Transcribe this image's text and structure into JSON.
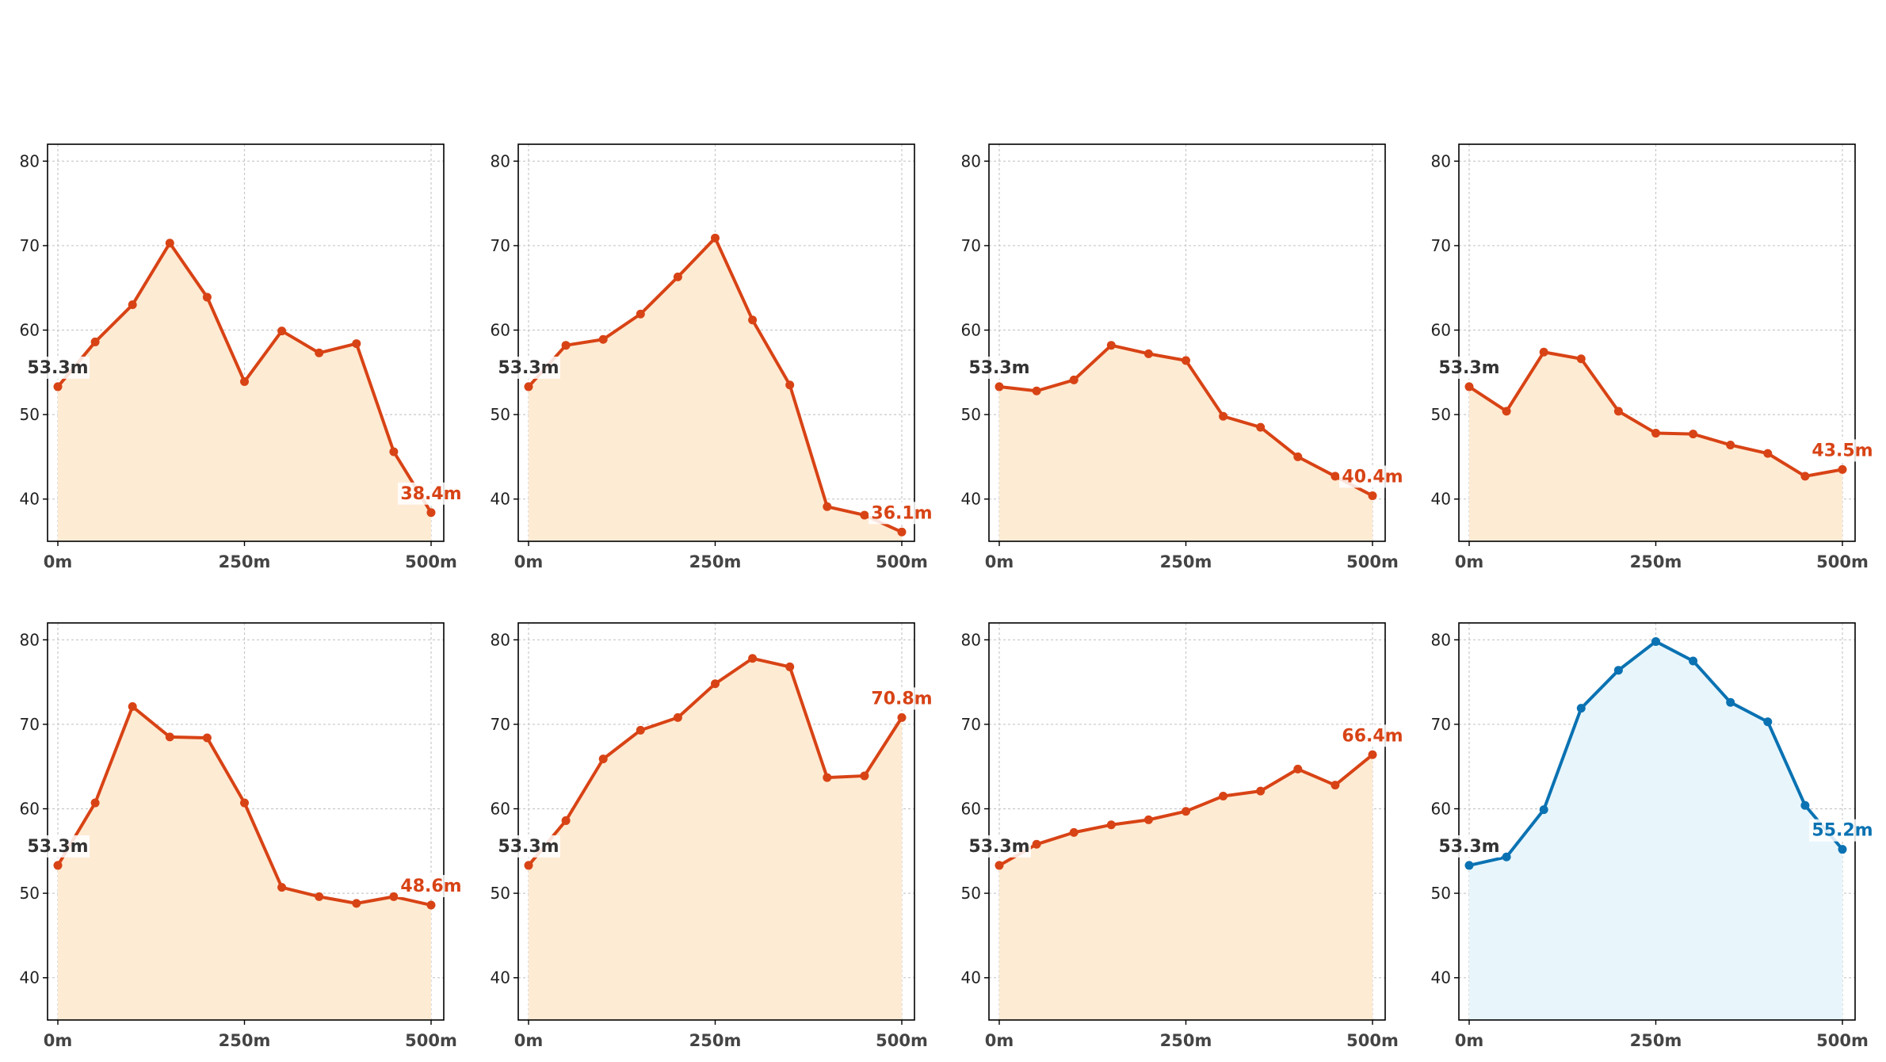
{
  "chart_data": [
    {
      "type": "line",
      "title": "",
      "x": [
        0,
        50,
        100,
        150,
        200,
        250,
        300,
        350,
        400,
        450,
        500
      ],
      "xticks": [
        "0m",
        "250m",
        "500m"
      ],
      "ylim": [
        35,
        82
      ],
      "yticks": [
        40,
        50,
        60,
        70,
        80
      ],
      "grid": true,
      "series": [
        {
          "values": [
            53.3,
            58.6,
            63.0,
            70.3,
            63.9,
            53.9,
            59.9,
            57.3,
            58.4,
            45.6,
            38.4
          ],
          "color": "#d84315",
          "fill": "#feebd3"
        }
      ],
      "labels": {
        "start": "53.3m",
        "end": "38.4m"
      }
    },
    {
      "type": "line",
      "title": "",
      "x": [
        0,
        50,
        100,
        150,
        200,
        250,
        300,
        350,
        400,
        450,
        500
      ],
      "xticks": [
        "0m",
        "250m",
        "500m"
      ],
      "ylim": [
        35,
        82
      ],
      "yticks": [
        40,
        50,
        60,
        70,
        80
      ],
      "grid": true,
      "series": [
        {
          "values": [
            53.3,
            58.2,
            58.9,
            61.9,
            66.3,
            70.9,
            61.2,
            53.5,
            39.1,
            38.1,
            36.1
          ],
          "color": "#d84315",
          "fill": "#feebd3"
        }
      ],
      "labels": {
        "start": "53.3m",
        "end": "36.1m"
      }
    },
    {
      "type": "line",
      "title": "",
      "x": [
        0,
        50,
        100,
        150,
        200,
        250,
        300,
        350,
        400,
        450,
        500
      ],
      "xticks": [
        "0m",
        "250m",
        "500m"
      ],
      "ylim": [
        35,
        82
      ],
      "yticks": [
        40,
        50,
        60,
        70,
        80
      ],
      "grid": true,
      "series": [
        {
          "values": [
            53.3,
            52.8,
            54.1,
            58.2,
            57.2,
            56.4,
            49.8,
            48.5,
            45.0,
            42.7,
            40.4
          ],
          "color": "#d84315",
          "fill": "#feebd3"
        }
      ],
      "labels": {
        "start": "53.3m",
        "end": "40.4m"
      }
    },
    {
      "type": "line",
      "title": "",
      "x": [
        0,
        50,
        100,
        150,
        200,
        250,
        300,
        350,
        400,
        450,
        500
      ],
      "xticks": [
        "0m",
        "250m",
        "500m"
      ],
      "ylim": [
        35,
        82
      ],
      "yticks": [
        40,
        50,
        60,
        70,
        80
      ],
      "grid": true,
      "series": [
        {
          "values": [
            53.3,
            50.4,
            57.4,
            56.6,
            50.4,
            47.8,
            47.7,
            46.4,
            45.4,
            42.7,
            43.5
          ],
          "color": "#d84315",
          "fill": "#feebd3"
        }
      ],
      "labels": {
        "start": "53.3m",
        "end": "43.5m"
      }
    },
    {
      "type": "line",
      "title": "",
      "x": [
        0,
        50,
        100,
        150,
        200,
        250,
        300,
        350,
        400,
        450,
        500
      ],
      "xticks": [
        "0m",
        "250m",
        "500m"
      ],
      "ylim": [
        35,
        82
      ],
      "yticks": [
        40,
        50,
        60,
        70,
        80
      ],
      "grid": true,
      "series": [
        {
          "values": [
            53.3,
            60.7,
            72.1,
            68.5,
            68.4,
            60.7,
            50.7,
            49.6,
            48.8,
            49.6,
            48.6
          ],
          "color": "#d84315",
          "fill": "#feebd3"
        }
      ],
      "labels": {
        "start": "53.3m",
        "end": "48.6m"
      }
    },
    {
      "type": "line",
      "title": "",
      "x": [
        0,
        50,
        100,
        150,
        200,
        250,
        300,
        350,
        400,
        450,
        500
      ],
      "xticks": [
        "0m",
        "250m",
        "500m"
      ],
      "ylim": [
        35,
        82
      ],
      "yticks": [
        40,
        50,
        60,
        70,
        80
      ],
      "grid": true,
      "series": [
        {
          "values": [
            53.3,
            58.6,
            65.9,
            69.3,
            70.8,
            74.8,
            77.8,
            76.8,
            63.7,
            63.9,
            70.8
          ],
          "color": "#d84315",
          "fill": "#feebd3"
        }
      ],
      "labels": {
        "start": "53.3m",
        "end": "70.8m"
      }
    },
    {
      "type": "line",
      "title": "",
      "x": [
        0,
        50,
        100,
        150,
        200,
        250,
        300,
        350,
        400,
        450,
        500
      ],
      "xticks": [
        "0m",
        "250m",
        "500m"
      ],
      "ylim": [
        35,
        82
      ],
      "yticks": [
        40,
        50,
        60,
        70,
        80
      ],
      "grid": true,
      "series": [
        {
          "values": [
            53.3,
            55.8,
            57.2,
            58.1,
            58.7,
            59.7,
            61.5,
            62.1,
            64.7,
            62.8,
            66.4
          ],
          "color": "#d84315",
          "fill": "#feebd3"
        }
      ],
      "labels": {
        "start": "53.3m",
        "end": "66.4m"
      }
    },
    {
      "type": "line",
      "title": "",
      "x": [
        0,
        50,
        100,
        150,
        200,
        250,
        300,
        350,
        400,
        450,
        500
      ],
      "xticks": [
        "0m",
        "250m",
        "500m"
      ],
      "ylim": [
        35,
        82
      ],
      "yticks": [
        40,
        50,
        60,
        70,
        80
      ],
      "grid": true,
      "series": [
        {
          "values": [
            53.3,
            54.3,
            59.9,
            71.9,
            76.4,
            79.8,
            77.5,
            72.6,
            70.3,
            60.4,
            55.2
          ],
          "color": "#0a72b2",
          "fill": "#e8f6fc"
        }
      ],
      "labels": {
        "start": "53.3m",
        "end": "55.2m"
      }
    }
  ]
}
